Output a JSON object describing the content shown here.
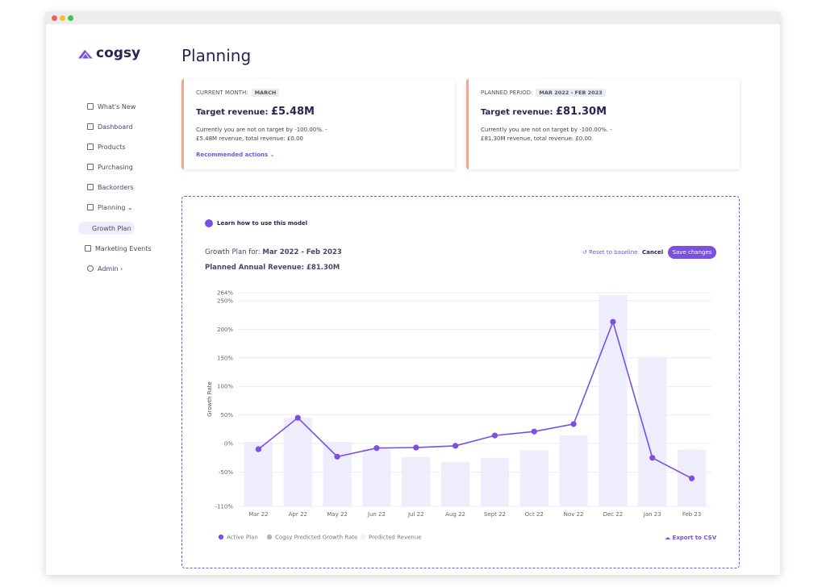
{
  "logo": "cogsy",
  "nav": [
    "What's New",
    "Dashboard",
    "Products",
    "Purchasing",
    "Backorders",
    "Planning",
    "Growth Plan",
    "Marketing Events",
    "Admin"
  ],
  "page_title": "Planning",
  "cards": [
    {
      "label": "CURRENT MONTH:",
      "badge": "MARCH",
      "target_label": "Target revenue:",
      "target_value": "£5.48M",
      "text": [
        "Currently you are not on target by -100.00%. -",
        "£5.48M revenue, total revenue: £0.00"
      ],
      "link": "Recommended actions"
    },
    {
      "label": "PLANNED PERIOD:",
      "badge": "MAR 2022 - FEB 2023",
      "target_label": "Target revenue:",
      "target_value": "£81.30M",
      "text": [
        "Currently you are not on target by -100.00%. -",
        "£81.30M revenue, total revenue: £0.00"
      ]
    }
  ],
  "panel": {
    "learn": "Learn how to use this model",
    "plan_label": "Growth Plan for:",
    "plan_period": "Mar 2022 - Feb 2023",
    "annual_label": "Planned Annual Revenue:",
    "annual_value": "£81.30M",
    "buttons": [
      "Reset to baseline",
      "Cancel",
      "Save changes"
    ],
    "export": "Export to CSV"
  },
  "chart_data": {
    "type": "combo",
    "y_label": "Growth Rate",
    "categories": [
      "Mar 22",
      "Apr 22",
      "May 22",
      "Jun 22",
      "Jul 22",
      "Aug 22",
      "Sept 22",
      "Oct 22",
      "Nov 22",
      "Dec 22",
      "Jan 23",
      "Feb 23"
    ],
    "series": [
      {
        "name": "Active Plan",
        "type": "line",
        "color": "#7b4fe0",
        "values": [
          -10,
          45,
          -23,
          -8,
          -7,
          -4,
          14,
          21,
          34,
          213,
          -25,
          -61
        ]
      },
      {
        "name": "Cogsy Predicted Growth Rate",
        "type": "line",
        "color": "#b5b5b5",
        "values": [
          null,
          null,
          null,
          null,
          null,
          null,
          null,
          null,
          null,
          null,
          null,
          null
        ]
      },
      {
        "name": "Predicted Revenue",
        "type": "bar",
        "color": "#efecfb",
        "values": [
          3,
          45,
          3,
          -10,
          -24,
          -32,
          -25,
          -12,
          14,
          260,
          152,
          -11
        ]
      }
    ],
    "ylim": [
      -110,
      264
    ],
    "yticks": [
      {
        "value": -110,
        "label": "-110%"
      },
      {
        "value": -50,
        "label": "-50%"
      },
      {
        "value": 0,
        "label": "0%"
      },
      {
        "value": 50,
        "label": "50%"
      },
      {
        "value": 100,
        "label": "100%"
      },
      {
        "value": 150,
        "label": "150%"
      },
      {
        "value": 200,
        "label": "200%"
      },
      {
        "value": 250,
        "label": "250%"
      },
      {
        "value": 264,
        "label": "264%"
      }
    ],
    "grid": true
  }
}
